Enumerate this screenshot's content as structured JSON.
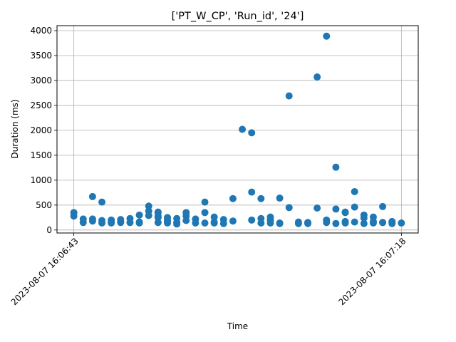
{
  "chart_data": {
    "type": "scatter",
    "title": "['PT_W_CP', 'Run_id', '24']",
    "xlabel": "Time",
    "ylabel": "Duration (ms)",
    "x_tick_labels": [
      "2023-08-07 16:06:43",
      "2023-08-07 16:07:18"
    ],
    "x_ticks_seconds": [
      0,
      35
    ],
    "xlim_seconds": [
      -1.8,
      36.8
    ],
    "y_ticks": [
      0,
      500,
      1000,
      1500,
      2000,
      2500,
      3000,
      3500,
      4000
    ],
    "ylim": [
      -60,
      4100
    ],
    "grid": true,
    "marker_color": "#1f77b4",
    "series": [
      {
        "x_seconds": [
          0,
          0,
          1,
          1,
          2,
          2,
          2,
          3,
          3,
          3,
          4,
          4,
          4,
          5,
          5,
          5,
          6,
          6,
          7,
          7,
          7,
          8,
          8,
          8,
          9,
          9,
          9,
          9,
          9,
          10,
          10,
          10,
          10,
          11,
          11,
          11,
          12,
          12,
          12,
          13,
          13,
          14,
          14,
          14,
          15,
          15,
          15,
          16,
          16,
          17,
          17,
          18,
          19,
          19,
          19,
          20,
          20,
          20,
          21,
          21,
          21,
          22,
          22,
          22,
          23,
          23,
          24,
          24,
          25,
          25,
          26,
          26,
          27,
          27,
          27,
          28,
          28,
          28,
          29,
          29,
          29,
          29,
          30,
          30,
          30,
          31,
          31,
          31,
          32,
          32,
          32,
          33,
          33,
          33,
          34,
          34,
          34,
          35
        ],
        "y": [
          350,
          280,
          220,
          150,
          220,
          180,
          670,
          190,
          140,
          560,
          200,
          160,
          140,
          210,
          150,
          170,
          230,
          150,
          300,
          140,
          160,
          480,
          380,
          290,
          350,
          250,
          150,
          360,
          280,
          170,
          140,
          250,
          200,
          230,
          150,
          120,
          280,
          190,
          350,
          220,
          140,
          560,
          350,
          140,
          260,
          160,
          140,
          210,
          130,
          630,
          180,
          2020,
          1950,
          760,
          200,
          230,
          140,
          630,
          260,
          140,
          200,
          640,
          140,
          130,
          450,
          2690,
          160,
          130,
          150,
          130,
          3070,
          440,
          3890,
          200,
          150,
          1260,
          130,
          420,
          350,
          170,
          140,
          360,
          770,
          460,
          160,
          300,
          240,
          130,
          140,
          260,
          170,
          470,
          150,
          150,
          130,
          170,
          150,
          140
        ]
      }
    ]
  }
}
